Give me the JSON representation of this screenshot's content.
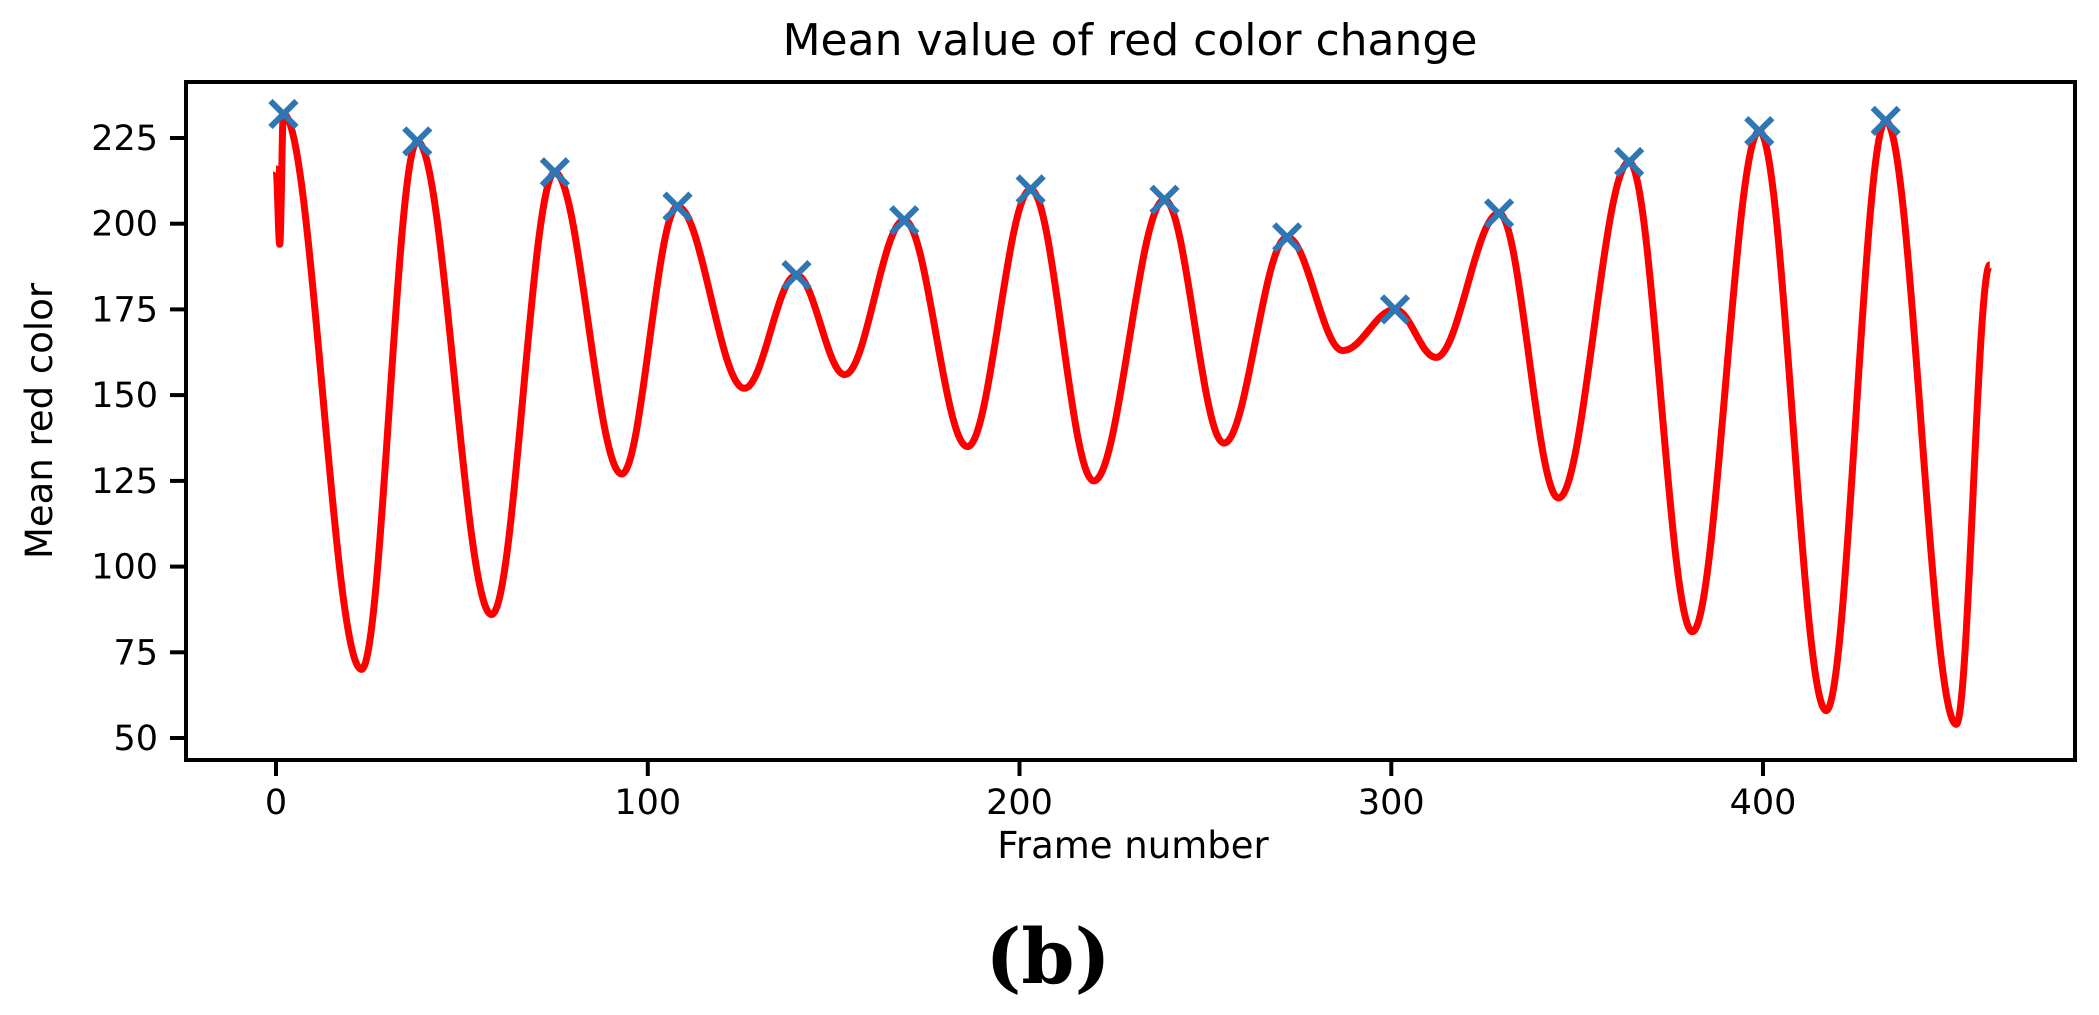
{
  "figure": {
    "title": "Mean value of red color change",
    "xlabel": "Frame number",
    "ylabel": "Mean red color",
    "caption": "(b)"
  },
  "colors": {
    "line": "#ff0000",
    "marker": "#2f77b4",
    "axis": "#000000",
    "background": "#ffffff"
  },
  "chart_data": {
    "type": "line",
    "title": "Mean value of red color change",
    "xlabel": "Frame number",
    "ylabel": "Mean red color",
    "xlim": [
      -24,
      485
    ],
    "ylim": [
      44,
      241
    ],
    "x_ticks": [
      0,
      100,
      200,
      300,
      400
    ],
    "y_ticks": [
      50,
      75,
      100,
      125,
      150,
      175,
      200,
      225
    ],
    "grid": false,
    "legend": "none",
    "series": [
      {
        "name": "mean-red-color",
        "style": "solid red curve",
        "points": [
          [
            0,
            216
          ],
          [
            1,
            194
          ],
          [
            2,
            232
          ],
          [
            23,
            70
          ],
          [
            38,
            224
          ],
          [
            58,
            86
          ],
          [
            75,
            215
          ],
          [
            93,
            127
          ],
          [
            108,
            205
          ],
          [
            126,
            152
          ],
          [
            140,
            185
          ],
          [
            153,
            156
          ],
          [
            169,
            201
          ],
          [
            186,
            135
          ],
          [
            203,
            210
          ],
          [
            220,
            125
          ],
          [
            239,
            207
          ],
          [
            255,
            136
          ],
          [
            272,
            196
          ],
          [
            287,
            163
          ],
          [
            301,
            175
          ],
          [
            312,
            161
          ],
          [
            329,
            203
          ],
          [
            345,
            120
          ],
          [
            364,
            218
          ],
          [
            381,
            81
          ],
          [
            399,
            227
          ],
          [
            417,
            58
          ],
          [
            433,
            230
          ],
          [
            452,
            54
          ],
          [
            461,
            188
          ]
        ]
      }
    ],
    "detected_peaks_markers": [
      [
        2,
        232
      ],
      [
        38,
        224
      ],
      [
        75,
        215
      ],
      [
        108,
        205
      ],
      [
        140,
        185
      ],
      [
        169,
        201
      ],
      [
        203,
        210
      ],
      [
        239,
        207
      ],
      [
        272,
        196
      ],
      [
        301,
        175
      ],
      [
        329,
        203
      ],
      [
        364,
        218
      ],
      [
        399,
        227
      ],
      [
        433,
        230
      ]
    ]
  }
}
